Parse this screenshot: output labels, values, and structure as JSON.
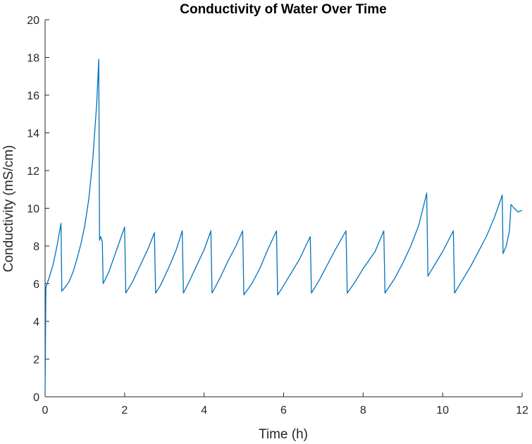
{
  "chart_data": {
    "type": "line",
    "title": "Conductivity of Water Over Time",
    "xlabel": "Time (h)",
    "ylabel": "Conductivity (mS/cm)",
    "xlim": [
      0,
      12
    ],
    "ylim": [
      0,
      20
    ],
    "xticks": [
      0,
      2,
      4,
      6,
      8,
      10,
      12
    ],
    "yticks": [
      0,
      2,
      4,
      6,
      8,
      10,
      12,
      14,
      16,
      18,
      20
    ],
    "grid": false,
    "line_color": "#0072BD",
    "series": [
      {
        "points": [
          [
            0.0,
            0.2
          ],
          [
            0.01,
            3.0
          ],
          [
            0.02,
            5.8
          ],
          [
            0.05,
            6.0
          ],
          [
            0.1,
            6.3
          ],
          [
            0.2,
            7.0
          ],
          [
            0.3,
            8.0
          ],
          [
            0.4,
            9.2
          ],
          [
            0.42,
            5.6
          ],
          [
            0.5,
            5.8
          ],
          [
            0.6,
            6.1
          ],
          [
            0.7,
            6.6
          ],
          [
            0.8,
            7.3
          ],
          [
            0.9,
            8.1
          ],
          [
            1.0,
            9.1
          ],
          [
            1.1,
            10.5
          ],
          [
            1.2,
            12.6
          ],
          [
            1.3,
            15.6
          ],
          [
            1.35,
            17.9
          ],
          [
            1.37,
            8.3
          ],
          [
            1.4,
            8.5
          ],
          [
            1.44,
            8.2
          ],
          [
            1.46,
            6.0
          ],
          [
            1.6,
            6.6
          ],
          [
            1.8,
            7.8
          ],
          [
            2.0,
            9.0
          ],
          [
            2.03,
            5.5
          ],
          [
            2.2,
            6.1
          ],
          [
            2.4,
            7.0
          ],
          [
            2.6,
            7.9
          ],
          [
            2.75,
            8.7
          ],
          [
            2.78,
            5.5
          ],
          [
            2.9,
            5.9
          ],
          [
            3.1,
            6.8
          ],
          [
            3.3,
            7.8
          ],
          [
            3.45,
            8.8
          ],
          [
            3.48,
            5.5
          ],
          [
            3.6,
            6.0
          ],
          [
            3.8,
            6.9
          ],
          [
            4.0,
            7.8
          ],
          [
            4.17,
            8.8
          ],
          [
            4.2,
            5.5
          ],
          [
            4.4,
            6.3
          ],
          [
            4.6,
            7.2
          ],
          [
            4.8,
            8.0
          ],
          [
            4.97,
            8.8
          ],
          [
            5.0,
            5.4
          ],
          [
            5.2,
            6.0
          ],
          [
            5.4,
            6.8
          ],
          [
            5.6,
            7.8
          ],
          [
            5.82,
            8.8
          ],
          [
            5.85,
            5.4
          ],
          [
            6.0,
            5.9
          ],
          [
            6.2,
            6.6
          ],
          [
            6.4,
            7.3
          ],
          [
            6.67,
            8.5
          ],
          [
            6.7,
            5.5
          ],
          [
            6.9,
            6.2
          ],
          [
            7.1,
            7.0
          ],
          [
            7.3,
            7.8
          ],
          [
            7.57,
            8.8
          ],
          [
            7.6,
            5.5
          ],
          [
            7.8,
            6.1
          ],
          [
            8.0,
            6.8
          ],
          [
            8.1,
            7.1
          ],
          [
            8.3,
            7.7
          ],
          [
            8.52,
            8.8
          ],
          [
            8.55,
            5.5
          ],
          [
            8.8,
            6.3
          ],
          [
            9.0,
            7.1
          ],
          [
            9.2,
            8.0
          ],
          [
            9.4,
            9.1
          ],
          [
            9.6,
            10.8
          ],
          [
            9.63,
            6.4
          ],
          [
            9.8,
            7.0
          ],
          [
            10.0,
            7.7
          ],
          [
            10.27,
            8.8
          ],
          [
            10.3,
            5.5
          ],
          [
            10.5,
            6.2
          ],
          [
            10.7,
            6.9
          ],
          [
            10.9,
            7.7
          ],
          [
            11.1,
            8.5
          ],
          [
            11.3,
            9.5
          ],
          [
            11.5,
            10.7
          ],
          [
            11.52,
            7.6
          ],
          [
            11.6,
            8.0
          ],
          [
            11.68,
            8.8
          ],
          [
            11.72,
            10.2
          ],
          [
            11.8,
            10.0
          ],
          [
            11.9,
            9.8
          ],
          [
            12.0,
            9.9
          ]
        ]
      }
    ]
  }
}
